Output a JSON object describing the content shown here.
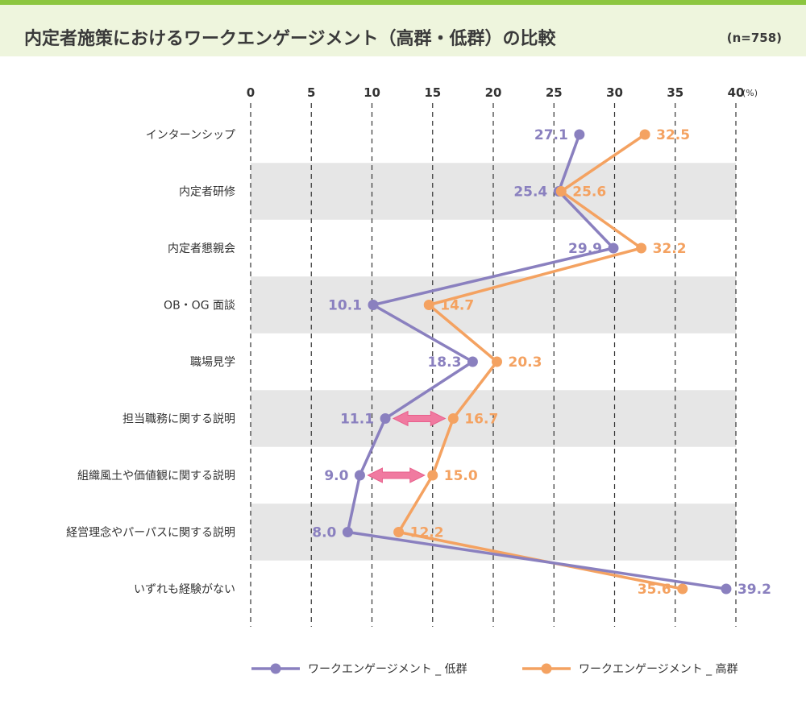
{
  "header": {
    "title": "内定者施策におけるワークエンゲージメント（高群・低群）の比較",
    "sample": "(n=758)"
  },
  "colors": {
    "low": "#8a80bf",
    "high": "#f4a261",
    "arrow": "#f07aa0",
    "band": "#e6e6e6",
    "accent": "#8cc63f"
  },
  "chart_data": {
    "type": "line",
    "orientation": "horizontal",
    "title": "内定者施策におけるワークエンゲージメント（高群・低群）の比較",
    "xunit": "(%)",
    "xlim": [
      0,
      40
    ],
    "xticks": [
      0,
      5,
      10,
      15,
      20,
      25,
      30,
      35,
      40
    ],
    "grid": true,
    "legend": "bottom-right",
    "categories": [
      "インターンシップ",
      "内定者研修",
      "内定者懇親会",
      "OB・OG 面談",
      "職場見学",
      "担当職務に関する説明",
      "組織風土や価値観に関する説明",
      "経営理念やパーパスに関する説明",
      "いずれも経験がない"
    ],
    "series": [
      {
        "name": "ワークエンゲージメント _ 低群",
        "color": "#8a80bf",
        "values": [
          27.1,
          25.4,
          29.9,
          10.1,
          18.3,
          11.1,
          9.0,
          8.0,
          39.2
        ]
      },
      {
        "name": "ワークエンゲージメント _ 高群",
        "color": "#f4a261",
        "values": [
          32.5,
          25.6,
          32.2,
          14.7,
          20.3,
          16.7,
          15.0,
          12.2,
          35.6
        ]
      }
    ],
    "highlight_arrows": [
      5,
      6
    ]
  }
}
